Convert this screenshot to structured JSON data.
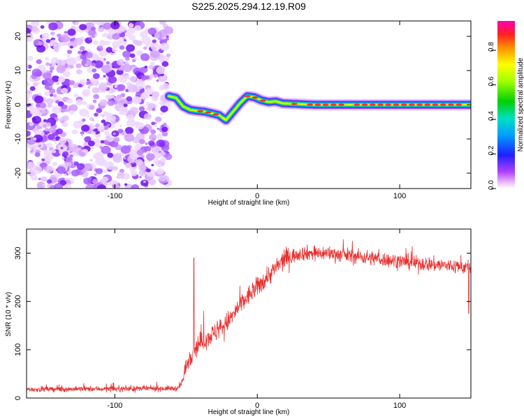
{
  "title": "S225.2025.294.12.19.R09",
  "chart_data": [
    {
      "type": "heatmap",
      "xlabel": "Height of straight line (km)",
      "ylabel": "Frequency (Hz)",
      "xlim": [
        -162,
        150
      ],
      "ylim": [
        -24.5,
        24.5
      ],
      "xticks": [
        -100,
        0,
        100
      ],
      "xtick_labels": [
        "-100",
        "0",
        "100"
      ],
      "yticks": [
        -20,
        -10,
        0,
        10,
        20
      ],
      "ytick_labels": [
        "-20",
        "-10",
        "0",
        "10",
        "20"
      ],
      "noise_region_km": [
        -162,
        -62
      ],
      "signal_track": {
        "x": [
          -62,
          -57,
          -52,
          -47,
          -42,
          -37,
          -32,
          -27,
          -22,
          -17,
          -12,
          -7,
          -2,
          3,
          8,
          13,
          18,
          40,
          80,
          120,
          150
        ],
        "y": [
          2.5,
          2.0,
          -0.5,
          -1.5,
          -1.8,
          -2.0,
          -2.5,
          -3.0,
          -4.5,
          -2.0,
          0.5,
          2.5,
          2.2,
          1.3,
          0.8,
          1.0,
          0.4,
          0.0,
          0.0,
          0.0,
          0.0
        ]
      },
      "colorbar": {
        "label": "Normalized spectral amplitude",
        "range": [
          0.0,
          0.97
        ],
        "ticks": [
          0.0,
          0.2,
          0.4,
          0.6,
          0.8
        ],
        "tick_labels": [
          "0.0",
          "0.2",
          "0.4",
          "0.6",
          "0.8"
        ]
      }
    },
    {
      "type": "line",
      "xlabel": "Height of straight line (km)",
      "ylabel": "SNR (10 * v/v)",
      "xlim": [
        -162,
        150
      ],
      "ylim": [
        0,
        350
      ],
      "xticks": [
        -100,
        0,
        100
      ],
      "xtick_labels": [
        "-100",
        "0",
        "100"
      ],
      "yticks": [
        0,
        100,
        200,
        300
      ],
      "ytick_labels": [
        "0",
        "100",
        "200",
        "300"
      ],
      "color": "#e83030",
      "series": [
        {
          "name": "SNR",
          "x": [
            -162,
            -55,
            -52,
            -49,
            -45,
            -40,
            -30,
            -20,
            -10,
            0,
            10,
            20,
            30,
            50,
            80,
            110,
            130,
            150
          ],
          "values": [
            18,
            20,
            40,
            75,
            100,
            115,
            135,
            160,
            200,
            230,
            260,
            290,
            300,
            300,
            290,
            280,
            275,
            270
          ],
          "spikes": [
            {
              "x": -44.5,
              "value": 290
            },
            {
              "x": 148.5,
              "value": 175
            }
          ]
        }
      ]
    }
  ]
}
